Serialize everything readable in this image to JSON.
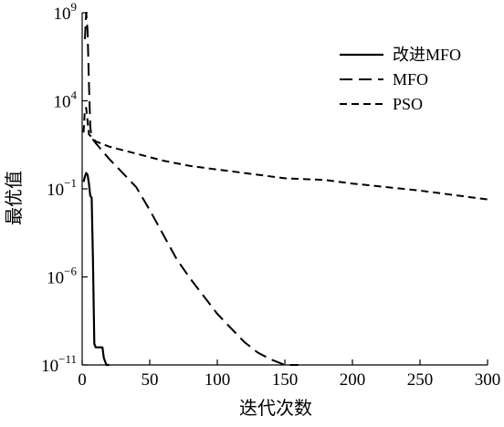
{
  "chart_data": {
    "type": "line",
    "title": "",
    "xlabel": "迭代次数",
    "ylabel": "最优值",
    "xlim": [
      0,
      300
    ],
    "ylim_log10": [
      -11,
      9
    ],
    "y_scale": "log",
    "x_ticks": [
      0,
      50,
      100,
      150,
      200,
      250,
      300
    ],
    "y_ticks": [
      {
        "base": "10",
        "exp": "9",
        "log": 9
      },
      {
        "base": "10",
        "exp": "4",
        "log": 4
      },
      {
        "base": "10",
        "exp": "−1",
        "log": -1
      },
      {
        "base": "10",
        "exp": "−6",
        "log": -6
      },
      {
        "base": "10",
        "exp": "−11",
        "log": -11
      }
    ],
    "grid": false,
    "legend_position": "top-right",
    "series": [
      {
        "name": "改进MFO",
        "style": "solid",
        "color": "#000000",
        "x": [
          1,
          2,
          3,
          4,
          5,
          6,
          7,
          8,
          9,
          10,
          12,
          15,
          16,
          18,
          20
        ],
        "y_log10": [
          -0.6,
          -0.3,
          -0.1,
          -0.2,
          -0.7,
          -1.4,
          -1.5,
          -5.0,
          -9.8,
          -10.0,
          -10.0,
          -10.0,
          -10.6,
          -11.0,
          -11.2
        ]
      },
      {
        "name": "MFO",
        "style": "dashed",
        "color": "#000000",
        "x": [
          2,
          3,
          4,
          5,
          6,
          7,
          8,
          10,
          20,
          30,
          40,
          50,
          60,
          70,
          80,
          90,
          100,
          110,
          120,
          130,
          140,
          150,
          160
        ],
        "y_log10": [
          7.5,
          9.0,
          8.0,
          5.0,
          2.5,
          1.9,
          1.8,
          1.6,
          0.7,
          -0.1,
          -0.9,
          -2.2,
          -3.6,
          -5.0,
          -6.1,
          -7.1,
          -8.1,
          -8.9,
          -9.7,
          -10.3,
          -10.7,
          -11.0,
          -11.3
        ]
      },
      {
        "name": "PSO",
        "style": "dashed",
        "color": "#000000",
        "x": [
          1,
          2,
          3,
          5,
          10,
          20,
          40,
          60,
          80,
          100,
          120,
          150,
          180,
          200,
          250,
          300
        ],
        "y_log10": [
          2.2,
          3.5,
          3.6,
          2.1,
          1.7,
          1.4,
          1.0,
          0.6,
          0.3,
          0.1,
          -0.1,
          -0.4,
          -0.5,
          -0.7,
          -1.1,
          -1.6
        ]
      }
    ]
  }
}
